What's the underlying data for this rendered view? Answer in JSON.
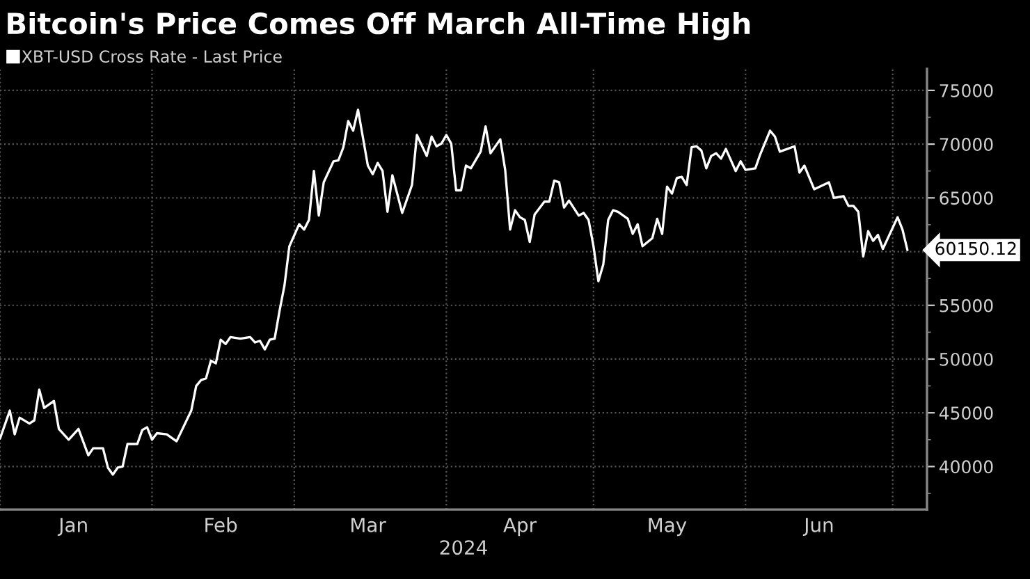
{
  "chart_data": {
    "type": "line",
    "title": "Bitcoin's Price Comes Off March All-Time High",
    "xlabel": "2024",
    "legend": "top left",
    "grid": true,
    "x": [
      "2024-01-01",
      "2024-01-03",
      "2024-01-04",
      "2024-01-05",
      "2024-01-07",
      "2024-01-08",
      "2024-01-09",
      "2024-01-10",
      "2024-01-12",
      "2024-01-13",
      "2024-01-15",
      "2024-01-17",
      "2024-01-19",
      "2024-01-20",
      "2024-01-22",
      "2024-01-23",
      "2024-01-24",
      "2024-01-25",
      "2024-01-26",
      "2024-01-27",
      "2024-01-29",
      "2024-01-30",
      "2024-01-31",
      "2024-02-01",
      "2024-02-02",
      "2024-02-04",
      "2024-02-06",
      "2024-02-09",
      "2024-02-10",
      "2024-02-11",
      "2024-02-12",
      "2024-02-13",
      "2024-02-14",
      "2024-02-15",
      "2024-02-16",
      "2024-02-17",
      "2024-02-19",
      "2024-02-21",
      "2024-02-22",
      "2024-02-23",
      "2024-02-24",
      "2024-02-25",
      "2024-02-26",
      "2024-02-27",
      "2024-02-28",
      "2024-02-29",
      "2024-03-02",
      "2024-03-03",
      "2024-03-04",
      "2024-03-05",
      "2024-03-06",
      "2024-03-07",
      "2024-03-09",
      "2024-03-10",
      "2024-03-11",
      "2024-03-12",
      "2024-03-13",
      "2024-03-14",
      "2024-03-16",
      "2024-03-17",
      "2024-03-18",
      "2024-03-19",
      "2024-03-20",
      "2024-03-21",
      "2024-03-23",
      "2024-03-25",
      "2024-03-26",
      "2024-03-28",
      "2024-03-29",
      "2024-03-30",
      "2024-03-31",
      "2024-04-01",
      "2024-04-02",
      "2024-04-03",
      "2024-04-04",
      "2024-04-05",
      "2024-04-06",
      "2024-04-08",
      "2024-04-09",
      "2024-04-10",
      "2024-04-12",
      "2024-04-13",
      "2024-04-14",
      "2024-04-15",
      "2024-04-16",
      "2024-04-17",
      "2024-04-18",
      "2024-04-19",
      "2024-04-21",
      "2024-04-22",
      "2024-04-23",
      "2024-04-24",
      "2024-04-25",
      "2024-04-26",
      "2024-04-28",
      "2024-04-29",
      "2024-04-30",
      "2024-05-01",
      "2024-05-02",
      "2024-05-03",
      "2024-05-04",
      "2024-05-05",
      "2024-05-06",
      "2024-05-08",
      "2024-05-09",
      "2024-05-10",
      "2024-05-11",
      "2024-05-13",
      "2024-05-14",
      "2024-05-15",
      "2024-05-16",
      "2024-05-17",
      "2024-05-18",
      "2024-05-19",
      "2024-05-20",
      "2024-05-21",
      "2024-05-22",
      "2024-05-23",
      "2024-05-24",
      "2024-05-25",
      "2024-05-26",
      "2024-05-27",
      "2024-05-28",
      "2024-05-30",
      "2024-05-31",
      "2024-06-01",
      "2024-06-03",
      "2024-06-04",
      "2024-06-06",
      "2024-06-07",
      "2024-06-08",
      "2024-06-11",
      "2024-06-12",
      "2024-06-13",
      "2024-06-15",
      "2024-06-18",
      "2024-06-19",
      "2024-06-21",
      "2024-06-22",
      "2024-06-23",
      "2024-06-24",
      "2024-06-25",
      "2024-06-26",
      "2024-06-27",
      "2024-06-28",
      "2024-06-29",
      "2024-07-02",
      "2024-07-03",
      "2024-07-04"
    ],
    "series": [
      {
        "name": "XBT-USD Cross Rate - Last Price",
        "color": "#ffffff",
        "values": [
          42600,
          45200,
          43000,
          44550,
          44000,
          44300,
          47150,
          45450,
          46100,
          43500,
          42500,
          43500,
          41050,
          41700,
          41700,
          39900,
          39250,
          39900,
          40000,
          42100,
          42100,
          43400,
          43650,
          42500,
          43100,
          43000,
          42350,
          45200,
          47500,
          48050,
          48200,
          49850,
          49600,
          51800,
          51400,
          52050,
          51900,
          52050,
          51550,
          51700,
          50900,
          51800,
          51900,
          54500,
          56850,
          60500,
          62550,
          62050,
          62950,
          67500,
          63350,
          66450,
          68400,
          68500,
          69700,
          72150,
          71250,
          73200,
          68000,
          67200,
          68250,
          67500,
          63700,
          67100,
          63600,
          66200,
          70850,
          68900,
          70700,
          69800,
          70050,
          70850,
          70050,
          65700,
          65700,
          68000,
          67750,
          69300,
          71650,
          69150,
          70450,
          67600,
          62050,
          63850,
          63200,
          62950,
          60900,
          63450,
          64650,
          64650,
          66600,
          66450,
          64100,
          64750,
          63350,
          63600,
          62950,
          60500,
          57250,
          58800,
          62950,
          63850,
          63700,
          63050,
          61650,
          62550,
          60500,
          61250,
          63050,
          61650,
          66050,
          65400,
          66850,
          66950,
          66200,
          69700,
          69800,
          69400,
          67750,
          68900,
          69150,
          68650,
          69550,
          67500,
          68400,
          67600,
          67750,
          69050,
          71250,
          70700,
          69300,
          69800,
          67350,
          68000,
          65800,
          66450,
          65000,
          65150,
          64250,
          64250,
          63700,
          59550,
          61900,
          61000,
          61550,
          60250,
          63200,
          62050,
          60150.12
        ]
      }
    ],
    "xlim": [
      "2024-01-01",
      "2024-07-08"
    ],
    "xticks": [
      {
        "value": "2024-01-01",
        "label": null
      },
      {
        "value": "2024-01-16",
        "label": "Jan"
      },
      {
        "value": "2024-02-01",
        "label": null
      },
      {
        "value": "2024-02-15",
        "label": "Feb"
      },
      {
        "value": "2024-03-01",
        "label": null
      },
      {
        "value": "2024-03-16",
        "label": "Mar"
      },
      {
        "value": "2024-04-01",
        "label": null
      },
      {
        "value": "2024-04-16",
        "label": "Apr"
      },
      {
        "value": "2024-05-01",
        "label": null
      },
      {
        "value": "2024-05-16",
        "label": "May"
      },
      {
        "value": "2024-06-01",
        "label": null
      },
      {
        "value": "2024-06-16",
        "label": "Jun"
      },
      {
        "value": "2024-07-01",
        "label": null
      }
    ],
    "ylim": [
      36000,
      77000
    ],
    "yticks": [
      {
        "value": 37500,
        "label": null
      },
      40000,
      {
        "value": 42500,
        "label": null
      },
      45000,
      {
        "value": 47500,
        "label": null
      },
      50000,
      {
        "value": 52500,
        "label": null
      },
      55000,
      {
        "value": 57500,
        "label": null
      },
      {
        "value": 60000,
        "label": null
      },
      {
        "value": 62500,
        "label": null
      },
      65000,
      {
        "value": 67500,
        "label": null
      },
      70000,
      {
        "value": 72500,
        "label": null
      },
      75000
    ],
    "annotations": [
      {
        "text": "60150.12",
        "x": "2024-07-04",
        "y": 60150.12
      }
    ]
  }
}
